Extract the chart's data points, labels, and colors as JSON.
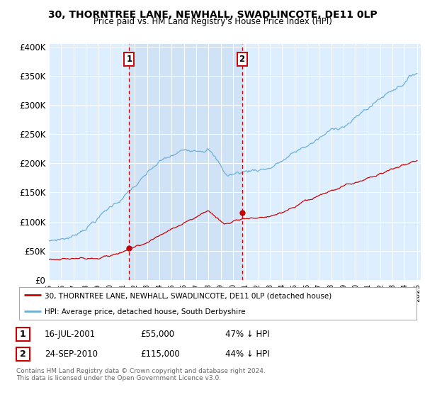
{
  "title": "30, THORNTREE LANE, NEWHALL, SWADLINCOTE, DE11 0LP",
  "subtitle": "Price paid vs. HM Land Registry's House Price Index (HPI)",
  "ylim": [
    0,
    400000
  ],
  "yticks": [
    0,
    50000,
    100000,
    150000,
    200000,
    250000,
    300000,
    350000,
    400000
  ],
  "ytick_labels": [
    "£0",
    "£50K",
    "£100K",
    "£150K",
    "£200K",
    "£250K",
    "£300K",
    "£350K",
    "£400K"
  ],
  "hpi_color": "#6baed6",
  "price_color": "#cc0000",
  "shade_color": "#ddeeff",
  "marker1_date": 2001.54,
  "marker1_price": 55000,
  "marker2_date": 2010.73,
  "marker2_price": 115000,
  "legend_line1": "30, THORNTREE LANE, NEWHALL, SWADLINCOTE, DE11 0LP (detached house)",
  "legend_line2": "HPI: Average price, detached house, South Derbyshire",
  "table_row1": [
    "1",
    "16-JUL-2001",
    "£55,000",
    "47% ↓ HPI"
  ],
  "table_row2": [
    "2",
    "24-SEP-2010",
    "£115,000",
    "44% ↓ HPI"
  ],
  "footnote1": "Contains HM Land Registry data © Crown copyright and database right 2024.",
  "footnote2": "This data is licensed under the Open Government Licence v3.0.",
  "background_color": "#ddeeff",
  "fig_bg": "#ffffff"
}
